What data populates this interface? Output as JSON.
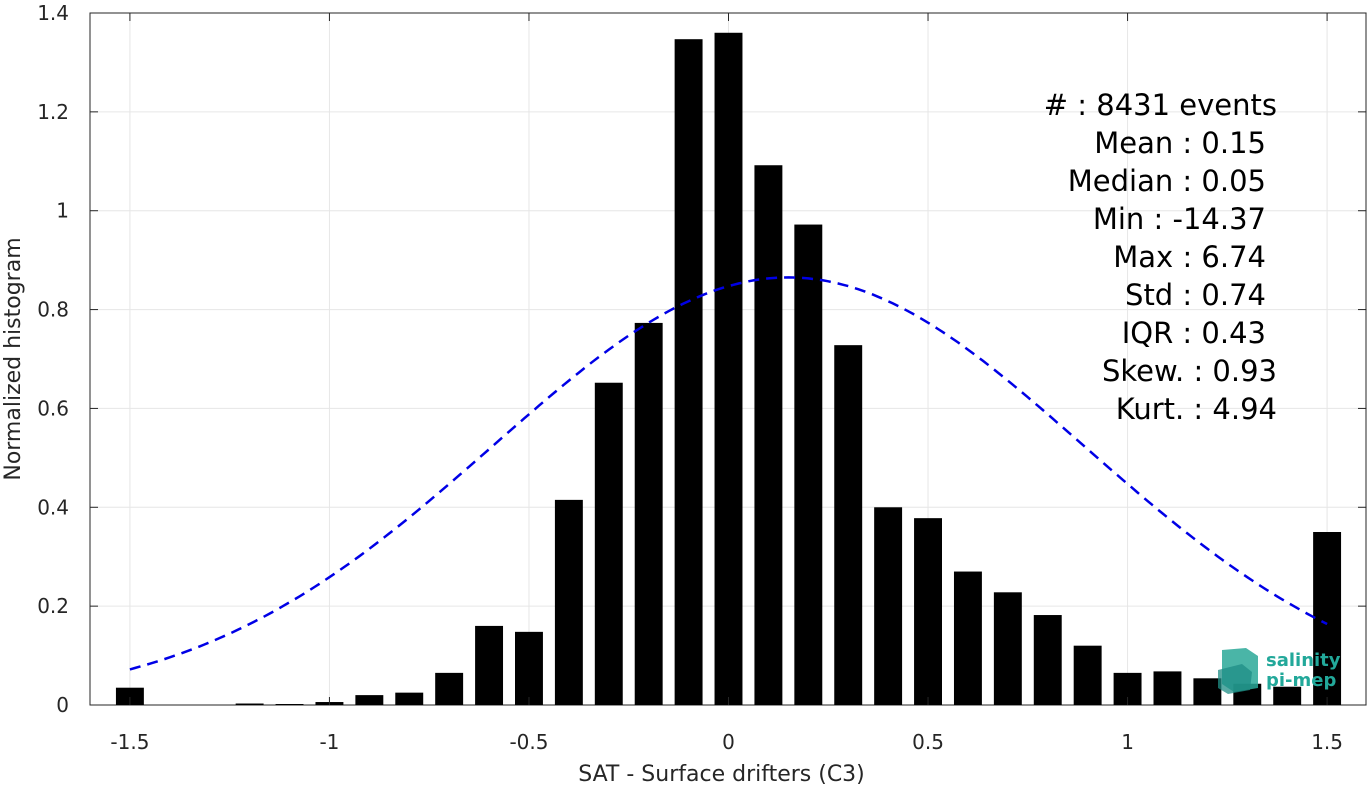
{
  "chart_data": {
    "type": "bar",
    "xlabel": "SAT - Surface drifters (C3)",
    "ylabel": "Normalized histogram",
    "xlim": [
      -1.6,
      1.6
    ],
    "ylim": [
      0,
      1.4
    ],
    "grid": true,
    "x_ticks": [
      -1.5,
      -1,
      -0.5,
      0,
      0.5,
      1,
      1.5
    ],
    "x_tick_labels": [
      "-1.5",
      "-1",
      "-0.5",
      "0",
      "0.5",
      "1",
      "1.5"
    ],
    "y_ticks": [
      0,
      0.2,
      0.4,
      0.6,
      0.8,
      1,
      1.2,
      1.4
    ],
    "y_tick_labels": [
      "0",
      "0.2",
      "0.4",
      "0.6",
      "0.8",
      "1",
      "1.2",
      "1.4"
    ],
    "bin_width": 0.1,
    "series": [
      {
        "x": [
          -1.5,
          -1.4,
          -1.3,
          -1.2,
          -1.1,
          -1.0,
          -0.9,
          -0.8,
          -0.7,
          -0.6,
          -0.5,
          -0.4,
          -0.3,
          -0.2,
          -0.1,
          0.0,
          0.1,
          0.2,
          0.3,
          0.4,
          0.5,
          0.6,
          0.7,
          0.8,
          0.9,
          1.0,
          1.1,
          1.2,
          1.3,
          1.4,
          1.5
        ],
        "values": [
          0.035,
          0.0,
          0.0,
          0.003,
          0.002,
          0.006,
          0.02,
          0.025,
          0.065,
          0.16,
          0.148,
          0.415,
          0.652,
          0.773,
          1.347,
          1.36,
          1.092,
          0.972,
          0.728,
          0.4,
          0.378,
          0.27,
          0.228,
          0.182,
          0.12,
          0.065,
          0.068,
          0.054,
          0.043,
          0.037,
          0.35
        ],
        "color": "#000000"
      },
      {
        "type": "line",
        "style": "dashed",
        "color": "#0000e6",
        "mean": 0.15,
        "std": 0.74,
        "scale": 0.865,
        "x_range": [
          -1.5,
          1.5
        ]
      }
    ],
    "annotations": [
      "#  : 8431 events",
      "Mean : 0.15",
      "Median : 0.05",
      "Min : -14.37",
      "Max : 6.74",
      "Std : 0.74",
      "IQR : 0.43",
      "Skew. : 0.93",
      "Kurt. : 4.94"
    ]
  },
  "logo": {
    "line1": "salinity",
    "line2": "pi-mep"
  }
}
